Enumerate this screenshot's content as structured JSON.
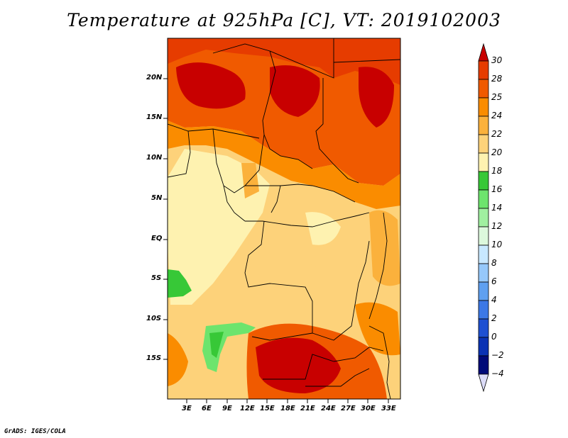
{
  "title": "Temperature at 925hPa [C], VT: 2019102003",
  "footer": "GrADS: IGES/COLA",
  "map": {
    "lat_labels": [
      "20N",
      "15N",
      "10N",
      "5N",
      "EQ",
      "5S",
      "10S",
      "15S"
    ],
    "lon_labels": [
      "3E",
      "6E",
      "9E",
      "12E",
      "15E",
      "18E",
      "21E",
      "24E",
      "27E",
      "30E",
      "33E"
    ]
  },
  "colorbar": {
    "levels": [
      "30",
      "28",
      "25",
      "24",
      "22",
      "20",
      "18",
      "16",
      "14",
      "12",
      "10",
      "8",
      "6",
      "4",
      "2",
      "0",
      "−2",
      "−4"
    ],
    "colors": [
      "#c80000",
      "#e63c00",
      "#f05a00",
      "#fa8c00",
      "#fbb13c",
      "#fdd27a",
      "#fef2b0",
      "#37c837",
      "#6de46d",
      "#a0f0a0",
      "#dcf8dc",
      "#c8e8ff",
      "#96c8fa",
      "#5fa0f0",
      "#3c78e6",
      "#1e50d2",
      "#0a32b4",
      "#000a78",
      "#dcdcf8"
    ]
  }
}
